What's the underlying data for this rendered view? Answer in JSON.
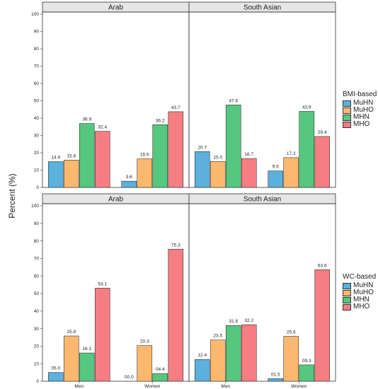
{
  "y_axis_label": "Percent (%)",
  "chart_data": [
    {
      "type": "bar",
      "group_panel": "Arab",
      "row": "BMI-based",
      "categories": [
        "Men",
        "Women"
      ],
      "ylim": [
        0,
        100
      ],
      "yticks": [
        "0",
        "10",
        "20",
        "30",
        "40",
        "50",
        "60",
        "70",
        "80",
        "90",
        "100"
      ],
      "show_x_tick_labels": false,
      "series": [
        {
          "name": "MuHN",
          "values": [
            14.9,
            3.6
          ],
          "labels": [
            "14.9",
            "3.6"
          ]
        },
        {
          "name": "MuHO",
          "values": [
            15.8,
            16.5
          ],
          "labels": [
            "15.8",
            "16.5"
          ]
        },
        {
          "name": "MHN",
          "values": [
            36.9,
            36.2
          ],
          "labels": [
            "36.9",
            "36.2"
          ]
        },
        {
          "name": "MHO",
          "values": [
            32.4,
            43.7
          ],
          "labels": [
            "32.4",
            "43.7"
          ]
        }
      ]
    },
    {
      "type": "bar",
      "group_panel": "South Asian",
      "row": "BMI-based",
      "categories": [
        "Men",
        "Women"
      ],
      "ylim": [
        0,
        100
      ],
      "show_x_tick_labels": false,
      "series": [
        {
          "name": "MuHN",
          "values": [
            20.7,
            9.5
          ],
          "labels": [
            "20.7",
            "9.5"
          ]
        },
        {
          "name": "MuHO",
          "values": [
            15.0,
            17.2
          ],
          "labels": [
            "15.0",
            "17.2"
          ]
        },
        {
          "name": "MHN",
          "values": [
            47.6,
            43.9
          ],
          "labels": [
            "47.6",
            "43.9"
          ]
        },
        {
          "name": "MHO",
          "values": [
            16.7,
            29.4
          ],
          "labels": [
            "16.7",
            "29.4"
          ]
        }
      ]
    },
    {
      "type": "bar",
      "group_panel": "Arab",
      "row": "WC-based",
      "categories": [
        "Men",
        "Women"
      ],
      "ylim": [
        0,
        100
      ],
      "yticks": [
        "0",
        "10",
        "20",
        "30",
        "40",
        "50",
        "60",
        "70",
        "80",
        "90",
        "100"
      ],
      "show_x_tick_labels": true,
      "series": [
        {
          "name": "MuHN",
          "values": [
            5.0,
            0.0
          ],
          "labels": [
            "05.0",
            "00.0"
          ]
        },
        {
          "name": "MuHO",
          "values": [
            25.8,
            20.3
          ],
          "labels": [
            "25.8",
            "20.3"
          ]
        },
        {
          "name": "MHN",
          "values": [
            16.1,
            4.4
          ],
          "labels": [
            "16.1",
            "04.4"
          ]
        },
        {
          "name": "MHO",
          "values": [
            53.1,
            75.3
          ],
          "labels": [
            "53.1",
            "75.3"
          ]
        }
      ]
    },
    {
      "type": "bar",
      "group_panel": "South Asian",
      "row": "WC-based",
      "categories": [
        "Men",
        "Women"
      ],
      "ylim": [
        0,
        100
      ],
      "show_x_tick_labels": true,
      "series": [
        {
          "name": "MuHN",
          "values": [
            12.4,
            1.5
          ],
          "labels": [
            "12.4",
            "01.5"
          ]
        },
        {
          "name": "MuHO",
          "values": [
            23.5,
            25.6
          ],
          "labels": [
            "23.5",
            "25.6"
          ]
        },
        {
          "name": "MHN",
          "values": [
            31.8,
            9.3
          ],
          "labels": [
            "31.8",
            "09.3"
          ]
        },
        {
          "name": "MHO",
          "values": [
            32.2,
            63.6
          ],
          "labels": [
            "32.2",
            "63.6"
          ]
        }
      ]
    }
  ],
  "colors": {
    "MuHN": "#5BB0DC",
    "MuHO": "#FCB86E",
    "MHN": "#56C77E",
    "MHO": "#F67E82"
  },
  "legends": [
    {
      "title": "BMI-based",
      "items": [
        "MuHN",
        "MuHO",
        "MHN",
        "MHO"
      ]
    },
    {
      "title": "WC-based",
      "items": [
        "MuHN",
        "MuHO",
        "MHN",
        "MHO"
      ]
    }
  ]
}
